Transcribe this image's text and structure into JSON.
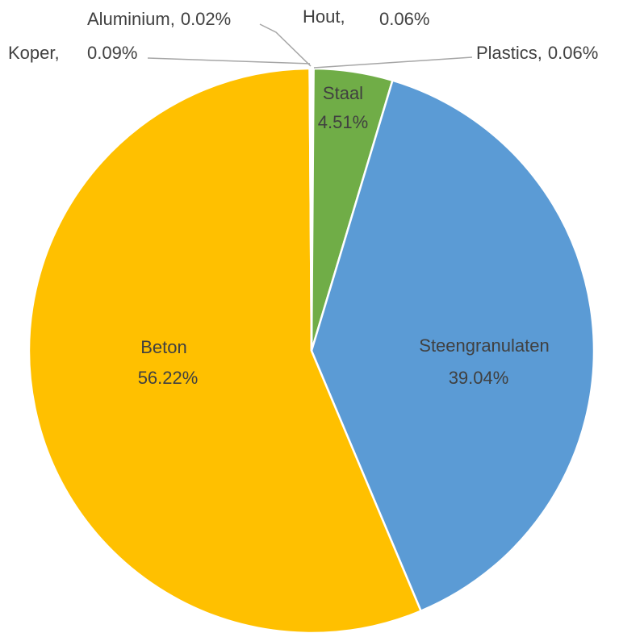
{
  "chart_data": {
    "type": "pie",
    "categories": [
      "Hout",
      "Plastics",
      "Staal",
      "Steengranulaten",
      "Beton",
      "Koper",
      "Aluminium"
    ],
    "values": [
      0.06,
      0.06,
      4.51,
      39.04,
      56.22,
      0.09,
      0.02
    ],
    "value_labels": [
      "0.06%",
      "0.06%",
      "4.51%",
      "39.04%",
      "56.22%",
      "0.09%",
      "0.02%"
    ],
    "colors": [
      "#a5a5a5",
      "#264478",
      "#70ad47",
      "#5b9bd5",
      "#ffc000",
      "#ed7d31",
      "#4472c4"
    ],
    "label_separator": ","
  }
}
